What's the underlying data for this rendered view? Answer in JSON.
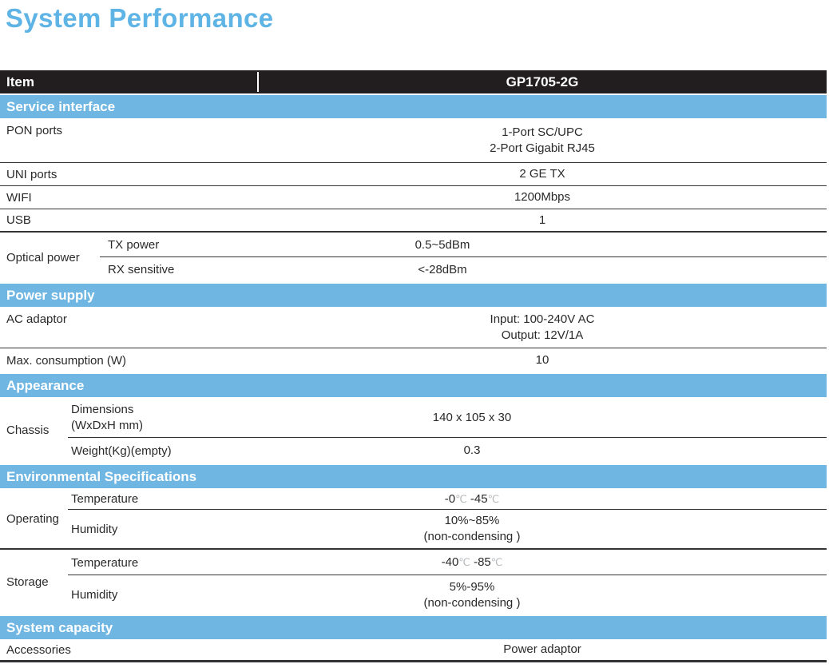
{
  "page_title": "System Performance",
  "colors": {
    "accent_blue": "#6FB6E3",
    "title_blue": "#5FB4E6",
    "header_black": "#221E20",
    "text_dark": "#2A2A2C",
    "degree_gray": "#B7BABD"
  },
  "header": {
    "col_item": "Item",
    "col_model": "GP1705-2G"
  },
  "sections": {
    "service_interface": {
      "title": "Service interface",
      "pon_ports": {
        "label": "PON ports",
        "value_line1": "1-Port SC/UPC",
        "value_line2": "2-Port Gigabit RJ45"
      },
      "uni_ports": {
        "label": "UNI ports",
        "value": "2 GE TX"
      },
      "wifi": {
        "label": "WIFI",
        "value": "1200Mbps"
      },
      "usb": {
        "label": "USB",
        "value": "1"
      },
      "optical_power": {
        "label": "Optical power",
        "tx_power": {
          "label": "TX power",
          "value": "0.5~5dBm"
        },
        "rx_sensitive": {
          "label": "RX sensitive",
          "value": "<-28dBm"
        }
      }
    },
    "power_supply": {
      "title": "Power supply",
      "ac_adaptor": {
        "label": "AC adaptor",
        "value_line1": "Input: 100-240V AC",
        "value_line2": "Output: 12V/1A"
      },
      "max_consumption": {
        "label": "Max. consumption (W)",
        "value": "10"
      }
    },
    "appearance": {
      "title": "Appearance",
      "chassis": {
        "label": "Chassis",
        "dimensions": {
          "label_line1": "Dimensions",
          "label_line2": "(WxDxH mm)",
          "value": "140 x 105 x 30"
        },
        "weight": {
          "label": "Weight(Kg)(empty)",
          "value": "0.3"
        }
      }
    },
    "environmental_specifications": {
      "title": "Environmental Specifications",
      "operating": {
        "label": "Operating",
        "temperature": {
          "label": "Temperature",
          "value": "-0℃ -45℃"
        },
        "humidity": {
          "label": "Humidity",
          "value_line1": "10%~85%",
          "value_line2": "(non-condensing )"
        }
      },
      "storage": {
        "label": "Storage",
        "temperature": {
          "label": "Temperature",
          "value": "-40℃ -85℃"
        },
        "humidity": {
          "label": "Humidity",
          "value_line1": "5%-95%",
          "value_line2": "(non-condensing )"
        }
      }
    },
    "system_capacity": {
      "title": "System capacity",
      "accessories": {
        "label": "Accessories",
        "value": "Power adaptor"
      }
    }
  }
}
